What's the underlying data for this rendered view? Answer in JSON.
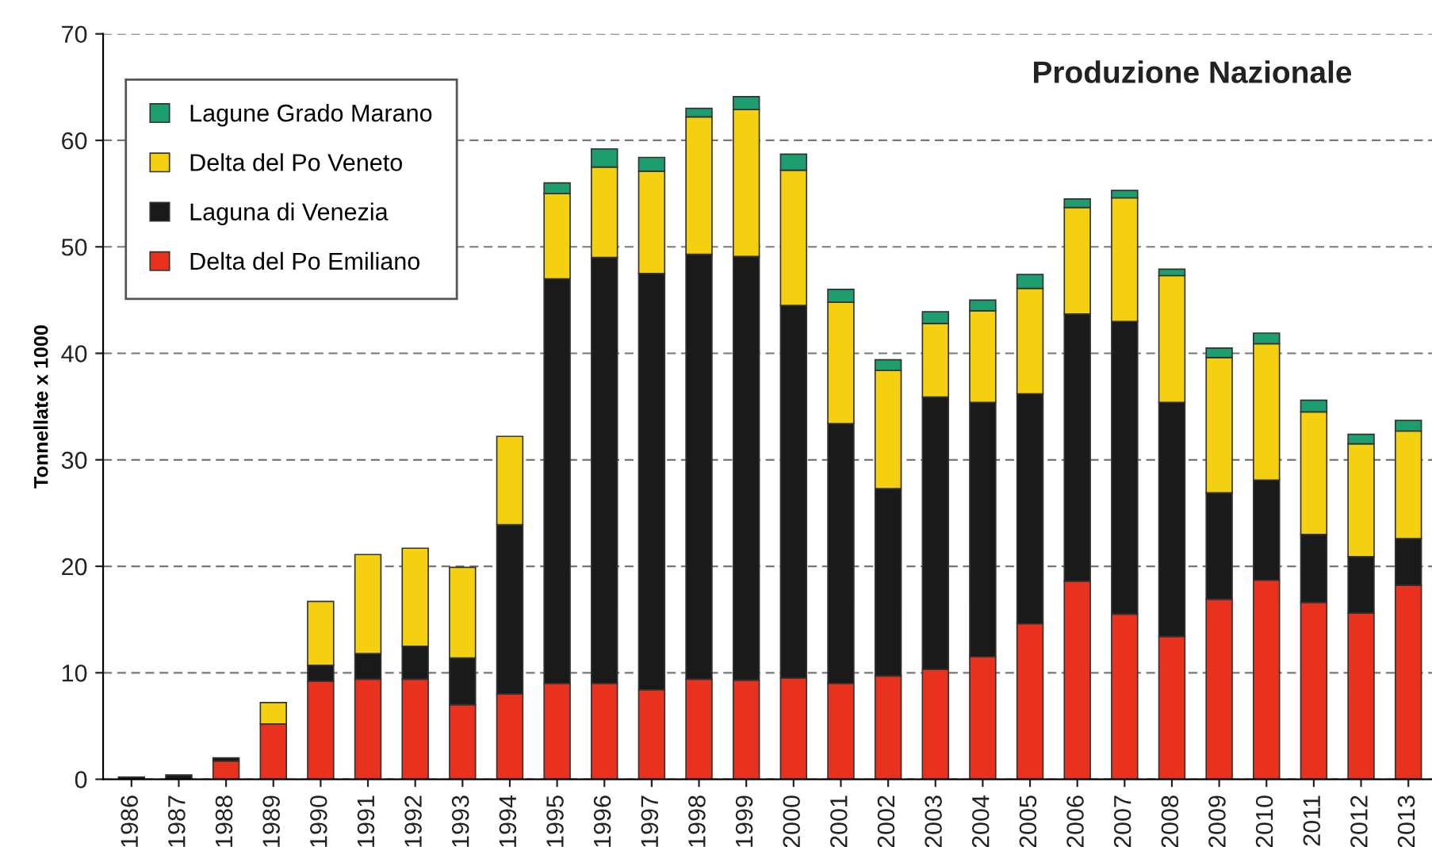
{
  "chart_data": {
    "type": "bar",
    "title": "Produzione Nazionale",
    "ylabel": "Tonnellate x 1000",
    "categories": [
      "1986",
      "1987",
      "1988",
      "1989",
      "1990",
      "1991",
      "1992",
      "1993",
      "1994",
      "1995",
      "1996",
      "1997",
      "1998",
      "1999",
      "2000",
      "2001",
      "2002",
      "2003",
      "2004",
      "2005",
      "2006",
      "2007",
      "2008",
      "2009",
      "2010",
      "2011",
      "2012",
      "2013"
    ],
    "stacked": true,
    "ylim": [
      0,
      70
    ],
    "yticks": [
      0,
      10,
      20,
      30,
      40,
      50,
      60,
      70
    ],
    "grid": "y",
    "legend": "top left",
    "series": [
      {
        "name": "Delta del Po Emiliano",
        "color": "#e8321e",
        "values": [
          0,
          0,
          1.7,
          5.2,
          9.2,
          9.4,
          9.4,
          7.0,
          8.0,
          9.0,
          9.0,
          8.4,
          9.4,
          9.3,
          9.5,
          9.0,
          9.7,
          10.3,
          11.5,
          14.6,
          18.6,
          15.5,
          13.4,
          16.9,
          18.7,
          16.6,
          15.6,
          18.2
        ]
      },
      {
        "name": "Laguna di Venezia",
        "color": "#1a1a1a",
        "values": [
          0.2,
          0.4,
          0.3,
          0,
          1.5,
          2.4,
          3.1,
          4.4,
          15.9,
          38.0,
          40.0,
          39.1,
          39.9,
          39.8,
          35.0,
          24.4,
          17.6,
          25.6,
          23.9,
          21.6,
          25.1,
          27.5,
          22.0,
          10.0,
          9.4,
          6.4,
          5.3,
          4.4
        ]
      },
      {
        "name": "Delta del Po Veneto",
        "color": "#f5d010",
        "values": [
          0,
          0,
          0,
          2.0,
          6.0,
          9.3,
          9.2,
          8.5,
          8.3,
          8.0,
          8.5,
          9.6,
          12.9,
          13.8,
          12.7,
          11.4,
          11.1,
          6.9,
          8.6,
          9.9,
          10.0,
          11.6,
          11.9,
          12.7,
          12.8,
          11.5,
          10.6,
          10.1
        ]
      },
      {
        "name": "Lagune Grado Marano",
        "color": "#1e9e6e",
        "values": [
          0,
          0,
          0,
          0,
          0,
          0,
          0,
          0,
          0,
          1.0,
          1.7,
          1.3,
          0.8,
          1.2,
          1.5,
          1.2,
          1.0,
          1.1,
          1.0,
          1.3,
          0.8,
          0.7,
          0.6,
          0.9,
          1.0,
          1.1,
          0.9,
          1.0
        ]
      }
    ]
  }
}
